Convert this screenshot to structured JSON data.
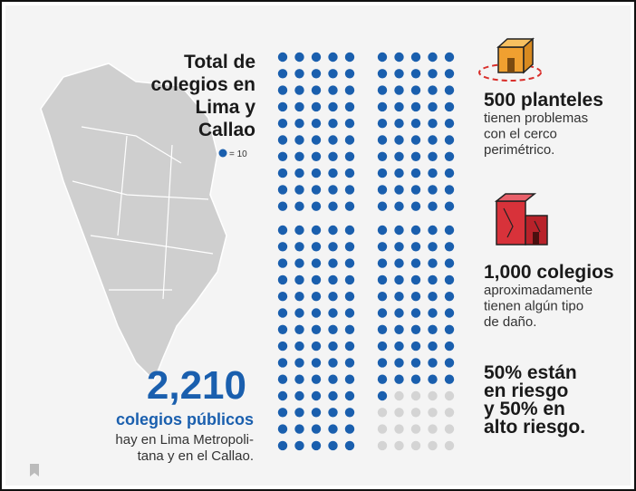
{
  "infographic": {
    "title_lines": [
      "Total de",
      "colegios en",
      "Lima y",
      "Callao"
    ],
    "legend": {
      "unit_value": 10,
      "label": "= 10"
    },
    "total": {
      "value": 2210,
      "label": "2,210"
    },
    "total_caption": "colegios públicos",
    "total_text_lines": [
      "hay en Lima Metropoli-",
      "tana y en el Callao."
    ],
    "facts": [
      {
        "headline_lines": [
          "500 planteles"
        ],
        "body_lines": [
          "tienen problemas",
          "con el cerco",
          "perimétrico."
        ]
      },
      {
        "headline_lines": [
          "1,000 colegios"
        ],
        "body_lines": [
          "aproximadamente",
          "tienen algún tipo",
          "de daño."
        ]
      },
      {
        "headline_lines": [
          "50% están",
          "en riesgo",
          "y 50% en",
          "alto riesgo."
        ],
        "body_lines": []
      }
    ]
  }
}
